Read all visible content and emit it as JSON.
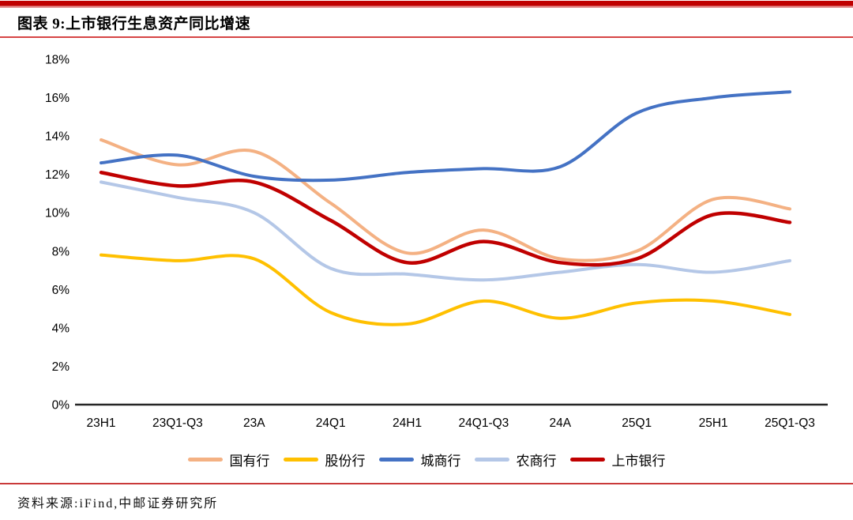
{
  "header": {
    "title": "图表 9:上市银行生息资产同比增速"
  },
  "chart_data": {
    "type": "line",
    "title": "上市银行生息资产同比增速",
    "smooth": true,
    "grid": false,
    "legend_position": "bottom",
    "categories": [
      "23H1",
      "23Q1-Q3",
      "23A",
      "24Q1",
      "24H1",
      "24Q1-Q3",
      "24A",
      "25Q1",
      "25H1",
      "25Q1-Q3"
    ],
    "series": [
      {
        "name": "国有行",
        "color": "#F4B183",
        "width": 4,
        "values": [
          13.8,
          12.5,
          13.2,
          10.5,
          7.9,
          9.1,
          7.6,
          8.0,
          10.7,
          10.2
        ]
      },
      {
        "name": "股份行",
        "color": "#FFC000",
        "width": 4,
        "values": [
          7.8,
          7.5,
          7.6,
          4.8,
          4.2,
          5.4,
          4.5,
          5.3,
          5.4,
          4.7
        ]
      },
      {
        "name": "城商行",
        "color": "#4472C4",
        "width": 4,
        "values": [
          12.6,
          13.0,
          11.9,
          11.7,
          12.1,
          12.3,
          12.4,
          15.2,
          16.0,
          16.3
        ]
      },
      {
        "name": "农商行",
        "color": "#B4C7E7",
        "width": 4,
        "values": [
          11.6,
          10.8,
          10.0,
          7.1,
          6.8,
          6.5,
          6.9,
          7.3,
          6.9,
          7.5
        ]
      },
      {
        "name": "上市银行",
        "color": "#C00000",
        "width": 4.5,
        "values": [
          12.1,
          11.4,
          11.6,
          9.6,
          7.4,
          8.5,
          7.4,
          7.6,
          9.9,
          9.5
        ]
      }
    ],
    "y_axis": {
      "min": 0,
      "max": 18,
      "step": 2,
      "suffix": "%"
    },
    "x_axis": {
      "line_color": "#262626"
    }
  },
  "footer": {
    "source": "资料来源:iFind,中邮证券研究所"
  },
  "palette": {
    "accent_red": "#c00000",
    "title_underline": "#d64545",
    "footer_divider": "#c93a3a",
    "axis_text": "#000000"
  }
}
